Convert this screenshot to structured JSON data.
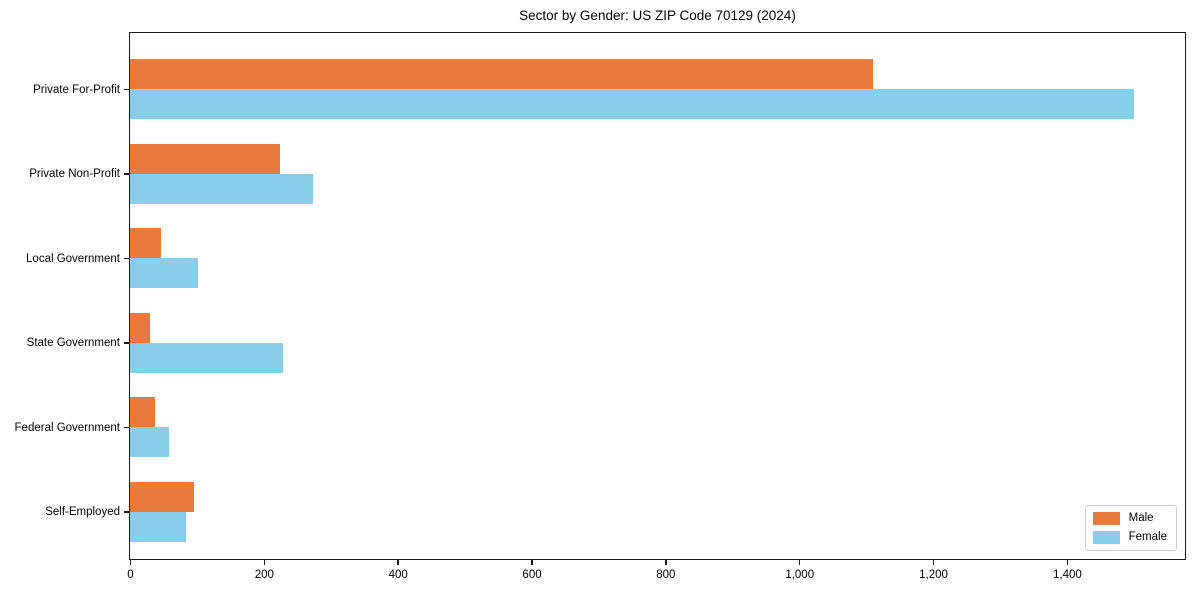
{
  "chart_data": {
    "type": "bar",
    "orientation": "horizontal",
    "title": "Sector by Gender: US ZIP Code 70129 (2024)",
    "categories": [
      "Private For-Profit",
      "Private Non-Profit",
      "Local Government",
      "State Government",
      "Federal Government",
      "Self-Employed"
    ],
    "series": [
      {
        "name": "Male",
        "color": "#E8793C",
        "values": [
          1110,
          224,
          47,
          30,
          38,
          95
        ]
      },
      {
        "name": "Female",
        "color": "#87CEEB",
        "values": [
          1500,
          273,
          102,
          229,
          59,
          83
        ]
      }
    ],
    "xlabel": "",
    "ylabel": "",
    "xlim": [
      0,
      1575
    ],
    "x_ticks": [
      0,
      200,
      400,
      600,
      800,
      1000,
      1200,
      1400
    ],
    "x_tick_labels": [
      "0",
      "200",
      "400",
      "600",
      "800",
      "1,000",
      "1,200",
      "1,400"
    ],
    "grid": false,
    "legend": {
      "position": "lower-right",
      "entries": [
        "Male",
        "Female"
      ]
    },
    "background_color": "#ffffff",
    "spine_color": "#1a1a1a"
  }
}
